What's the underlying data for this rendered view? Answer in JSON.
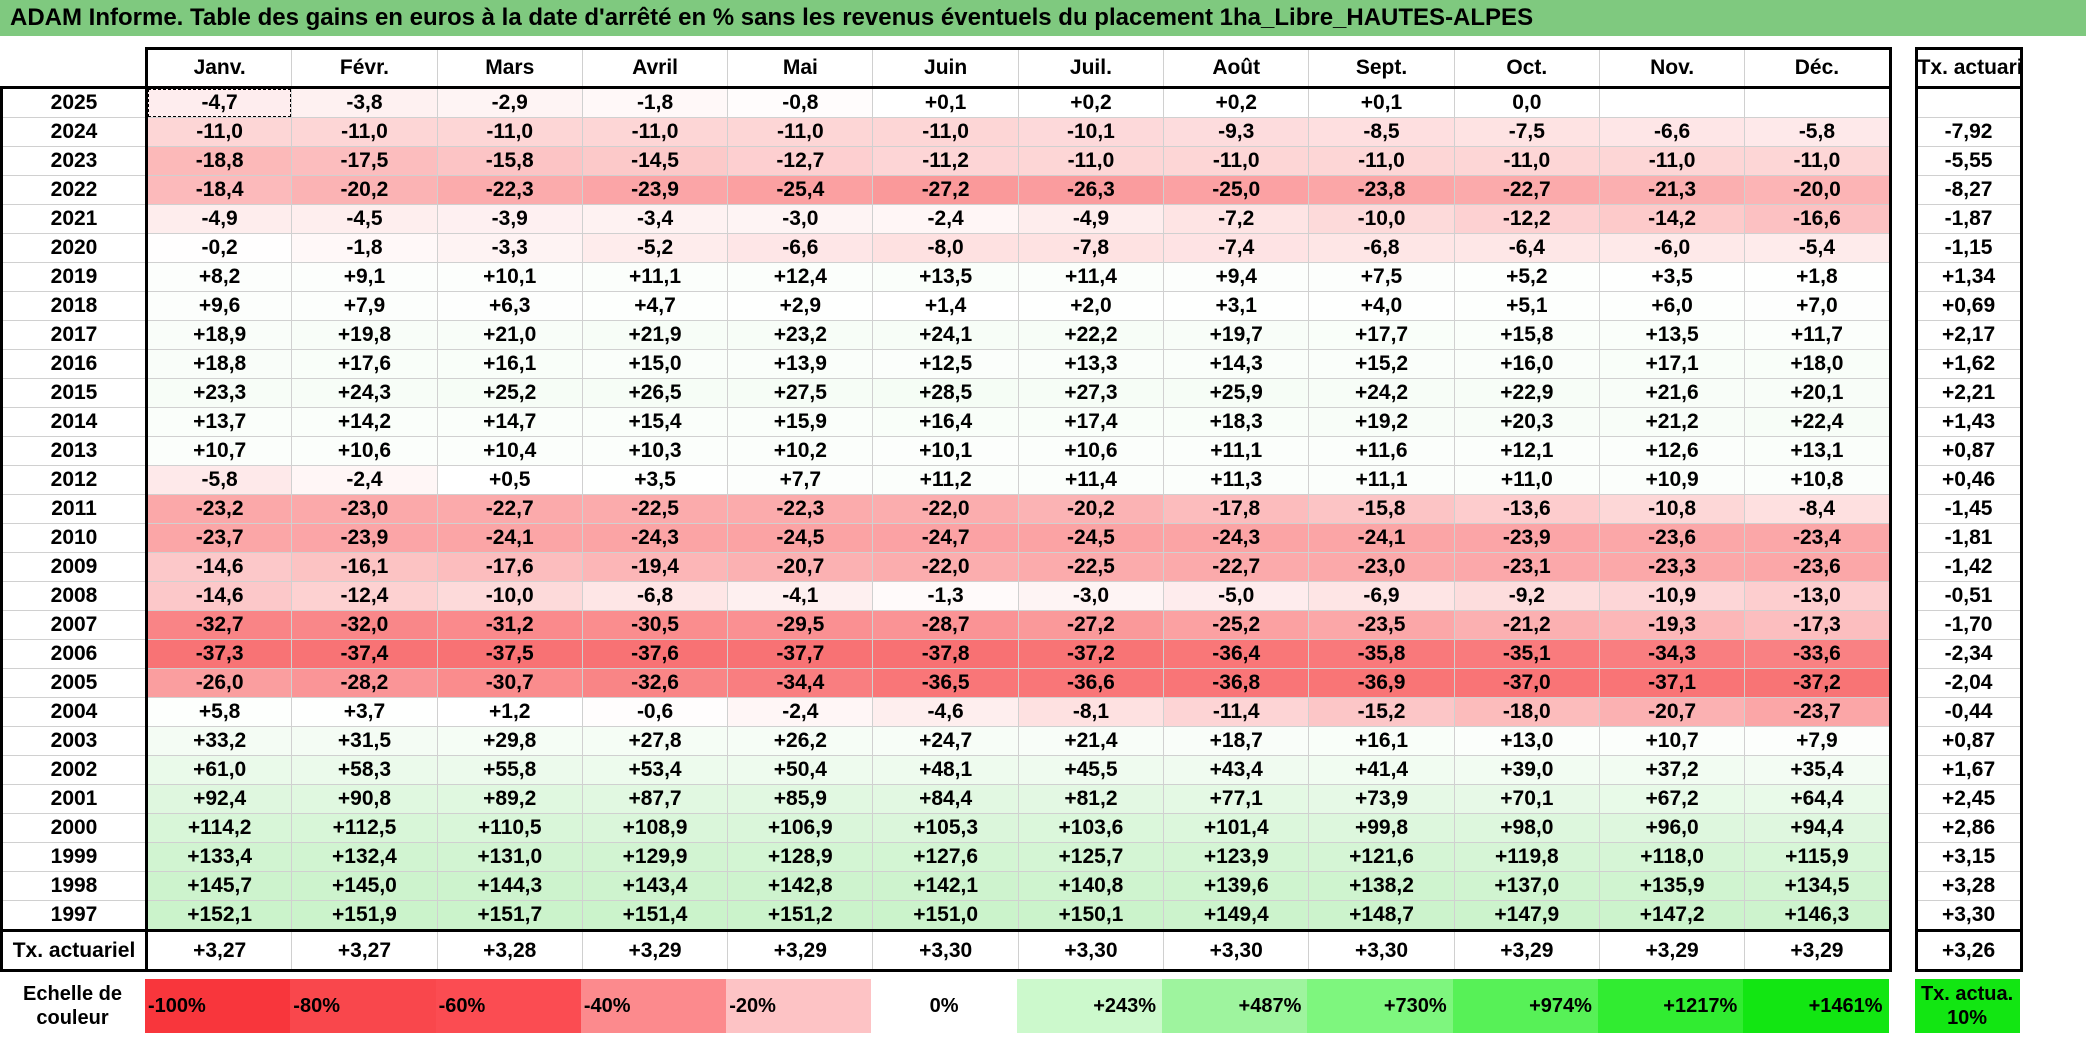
{
  "title": "ADAM Informe. Table des gains en euros à la date d'arrêté en % sans les revenus éventuels du placement 1ha_Libre_HAUTES-ALPES",
  "months": [
    "Janv.",
    "Févr.",
    "Mars",
    "Avril",
    "Mai",
    "Juin",
    "Juil.",
    "Août",
    "Sept.",
    "Oct.",
    "Nov.",
    "Déc."
  ],
  "tx_header": "Tx. actuariel",
  "rows": [
    {
      "year": "2025",
      "values": [
        "-4,7",
        "-3,8",
        "-2,9",
        "-1,8",
        "-0,8",
        "+0,1",
        "+0,2",
        "+0,2",
        "+0,1",
        "0,0",
        "",
        ""
      ],
      "tx": ""
    },
    {
      "year": "2024",
      "values": [
        "-11,0",
        "-11,0",
        "-11,0",
        "-11,0",
        "-11,0",
        "-11,0",
        "-10,1",
        "-9,3",
        "-8,5",
        "-7,5",
        "-6,6",
        "-5,8"
      ],
      "tx": "-7,92"
    },
    {
      "year": "2023",
      "values": [
        "-18,8",
        "-17,5",
        "-15,8",
        "-14,5",
        "-12,7",
        "-11,2",
        "-11,0",
        "-11,0",
        "-11,0",
        "-11,0",
        "-11,0",
        "-11,0"
      ],
      "tx": "-5,55"
    },
    {
      "year": "2022",
      "values": [
        "-18,4",
        "-20,2",
        "-22,3",
        "-23,9",
        "-25,4",
        "-27,2",
        "-26,3",
        "-25,0",
        "-23,8",
        "-22,7",
        "-21,3",
        "-20,0"
      ],
      "tx": "-8,27"
    },
    {
      "year": "2021",
      "values": [
        "-4,9",
        "-4,5",
        "-3,9",
        "-3,4",
        "-3,0",
        "-2,4",
        "-4,9",
        "-7,2",
        "-10,0",
        "-12,2",
        "-14,2",
        "-16,6"
      ],
      "tx": "-1,87"
    },
    {
      "year": "2020",
      "values": [
        "-0,2",
        "-1,8",
        "-3,3",
        "-5,2",
        "-6,6",
        "-8,0",
        "-7,8",
        "-7,4",
        "-6,8",
        "-6,4",
        "-6,0",
        "-5,4"
      ],
      "tx": "-1,15"
    },
    {
      "year": "2019",
      "values": [
        "+8,2",
        "+9,1",
        "+10,1",
        "+11,1",
        "+12,4",
        "+13,5",
        "+11,4",
        "+9,4",
        "+7,5",
        "+5,2",
        "+3,5",
        "+1,8"
      ],
      "tx": "+1,34"
    },
    {
      "year": "2018",
      "values": [
        "+9,6",
        "+7,9",
        "+6,3",
        "+4,7",
        "+2,9",
        "+1,4",
        "+2,0",
        "+3,1",
        "+4,0",
        "+5,1",
        "+6,0",
        "+7,0"
      ],
      "tx": "+0,69"
    },
    {
      "year": "2017",
      "values": [
        "+18,9",
        "+19,8",
        "+21,0",
        "+21,9",
        "+23,2",
        "+24,1",
        "+22,2",
        "+19,7",
        "+17,7",
        "+15,8",
        "+13,5",
        "+11,7"
      ],
      "tx": "+2,17"
    },
    {
      "year": "2016",
      "values": [
        "+18,8",
        "+17,6",
        "+16,1",
        "+15,0",
        "+13,9",
        "+12,5",
        "+13,3",
        "+14,3",
        "+15,2",
        "+16,0",
        "+17,1",
        "+18,0"
      ],
      "tx": "+1,62"
    },
    {
      "year": "2015",
      "values": [
        "+23,3",
        "+24,3",
        "+25,2",
        "+26,5",
        "+27,5",
        "+28,5",
        "+27,3",
        "+25,9",
        "+24,2",
        "+22,9",
        "+21,6",
        "+20,1"
      ],
      "tx": "+2,21"
    },
    {
      "year": "2014",
      "values": [
        "+13,7",
        "+14,2",
        "+14,7",
        "+15,4",
        "+15,9",
        "+16,4",
        "+17,4",
        "+18,3",
        "+19,2",
        "+20,3",
        "+21,2",
        "+22,4"
      ],
      "tx": "+1,43"
    },
    {
      "year": "2013",
      "values": [
        "+10,7",
        "+10,6",
        "+10,4",
        "+10,3",
        "+10,2",
        "+10,1",
        "+10,6",
        "+11,1",
        "+11,6",
        "+12,1",
        "+12,6",
        "+13,1"
      ],
      "tx": "+0,87"
    },
    {
      "year": "2012",
      "values": [
        "-5,8",
        "-2,4",
        "+0,5",
        "+3,5",
        "+7,7",
        "+11,2",
        "+11,4",
        "+11,3",
        "+11,1",
        "+11,0",
        "+10,9",
        "+10,8"
      ],
      "tx": "+0,46"
    },
    {
      "year": "2011",
      "values": [
        "-23,2",
        "-23,0",
        "-22,7",
        "-22,5",
        "-22,3",
        "-22,0",
        "-20,2",
        "-17,8",
        "-15,8",
        "-13,6",
        "-10,8",
        "-8,4"
      ],
      "tx": "-1,45"
    },
    {
      "year": "2010",
      "values": [
        "-23,7",
        "-23,9",
        "-24,1",
        "-24,3",
        "-24,5",
        "-24,7",
        "-24,5",
        "-24,3",
        "-24,1",
        "-23,9",
        "-23,6",
        "-23,4"
      ],
      "tx": "-1,81"
    },
    {
      "year": "2009",
      "values": [
        "-14,6",
        "-16,1",
        "-17,6",
        "-19,4",
        "-20,7",
        "-22,0",
        "-22,5",
        "-22,7",
        "-23,0",
        "-23,1",
        "-23,3",
        "-23,6"
      ],
      "tx": "-1,42"
    },
    {
      "year": "2008",
      "values": [
        "-14,6",
        "-12,4",
        "-10,0",
        "-6,8",
        "-4,1",
        "-1,3",
        "-3,0",
        "-5,0",
        "-6,9",
        "-9,2",
        "-10,9",
        "-13,0"
      ],
      "tx": "-0,51"
    },
    {
      "year": "2007",
      "values": [
        "-32,7",
        "-32,0",
        "-31,2",
        "-30,5",
        "-29,5",
        "-28,7",
        "-27,2",
        "-25,2",
        "-23,5",
        "-21,2",
        "-19,3",
        "-17,3"
      ],
      "tx": "-1,70"
    },
    {
      "year": "2006",
      "values": [
        "-37,3",
        "-37,4",
        "-37,5",
        "-37,6",
        "-37,7",
        "-37,8",
        "-37,2",
        "-36,4",
        "-35,8",
        "-35,1",
        "-34,3",
        "-33,6"
      ],
      "tx": "-2,34"
    },
    {
      "year": "2005",
      "values": [
        "-26,0",
        "-28,2",
        "-30,7",
        "-32,6",
        "-34,4",
        "-36,5",
        "-36,6",
        "-36,8",
        "-36,9",
        "-37,0",
        "-37,1",
        "-37,2"
      ],
      "tx": "-2,04"
    },
    {
      "year": "2004",
      "values": [
        "+5,8",
        "+3,7",
        "+1,2",
        "-0,6",
        "-2,4",
        "-4,6",
        "-8,1",
        "-11,4",
        "-15,2",
        "-18,0",
        "-20,7",
        "-23,7"
      ],
      "tx": "-0,44"
    },
    {
      "year": "2003",
      "values": [
        "+33,2",
        "+31,5",
        "+29,8",
        "+27,8",
        "+26,2",
        "+24,7",
        "+21,4",
        "+18,7",
        "+16,1",
        "+13,0",
        "+10,7",
        "+7,9"
      ],
      "tx": "+0,87"
    },
    {
      "year": "2002",
      "values": [
        "+61,0",
        "+58,3",
        "+55,8",
        "+53,4",
        "+50,4",
        "+48,1",
        "+45,5",
        "+43,4",
        "+41,4",
        "+39,0",
        "+37,2",
        "+35,4"
      ],
      "tx": "+1,67"
    },
    {
      "year": "2001",
      "values": [
        "+92,4",
        "+90,8",
        "+89,2",
        "+87,7",
        "+85,9",
        "+84,4",
        "+81,2",
        "+77,1",
        "+73,9",
        "+70,1",
        "+67,2",
        "+64,4"
      ],
      "tx": "+2,45"
    },
    {
      "year": "2000",
      "values": [
        "+114,2",
        "+112,5",
        "+110,5",
        "+108,9",
        "+106,9",
        "+105,3",
        "+103,6",
        "+101,4",
        "+99,8",
        "+98,0",
        "+96,0",
        "+94,4"
      ],
      "tx": "+2,86"
    },
    {
      "year": "1999",
      "values": [
        "+133,4",
        "+132,4",
        "+131,0",
        "+129,9",
        "+128,9",
        "+127,6",
        "+125,7",
        "+123,9",
        "+121,6",
        "+119,8",
        "+118,0",
        "+115,9"
      ],
      "tx": "+3,15"
    },
    {
      "year": "1998",
      "values": [
        "+145,7",
        "+145,0",
        "+144,3",
        "+143,4",
        "+142,8",
        "+142,1",
        "+140,8",
        "+139,6",
        "+138,2",
        "+137,0",
        "+135,9",
        "+134,5"
      ],
      "tx": "+3,28"
    },
    {
      "year": "1997",
      "values": [
        "+152,1",
        "+151,9",
        "+151,7",
        "+151,4",
        "+151,2",
        "+151,0",
        "+150,1",
        "+149,4",
        "+148,7",
        "+147,9",
        "+147,2",
        "+146,3"
      ],
      "tx": "+3,30"
    }
  ],
  "footer": {
    "label": "Tx. actuariel",
    "values": [
      "+3,27",
      "+3,27",
      "+3,28",
      "+3,29",
      "+3,29",
      "+3,30",
      "+3,30",
      "+3,30",
      "+3,30",
      "+3,29",
      "+3,29",
      "+3,29"
    ],
    "tx": "+3,26"
  },
  "scale": {
    "label": "Echelle de couleur",
    "cells": [
      {
        "text": "-100%",
        "color": "#f8363c",
        "kind": "neg"
      },
      {
        "text": "-80%",
        "color": "#f9474c",
        "kind": "neg"
      },
      {
        "text": "-60%",
        "color": "#fb4c52",
        "kind": "neg"
      },
      {
        "text": "-40%",
        "color": "#fc8a8d",
        "kind": "neg"
      },
      {
        "text": "-20%",
        "color": "#fdc3c5",
        "kind": "neg"
      },
      {
        "text": "0%",
        "color": "#ffffff",
        "kind": "zero"
      },
      {
        "text": "+243%",
        "color": "#ccf9cc",
        "kind": "pos"
      },
      {
        "text": "+487%",
        "color": "#9ef49e",
        "kind": "pos"
      },
      {
        "text": "+730%",
        "color": "#7ef67e",
        "kind": "pos"
      },
      {
        "text": "+974%",
        "color": "#57f157",
        "kind": "pos"
      },
      {
        "text": "+1217%",
        "color": "#31ec31",
        "kind": "pos"
      },
      {
        "text": "+1461%",
        "color": "#12e612",
        "kind": "pos"
      }
    ],
    "tx_label": "Tx. actua. 10%",
    "tx_color": "#12e612"
  },
  "colors": {
    "title_bar": "#7fc97f",
    "negative_max": "#f8696b",
    "positive_max": "#63be7b",
    "neutral": "#ffffff"
  }
}
